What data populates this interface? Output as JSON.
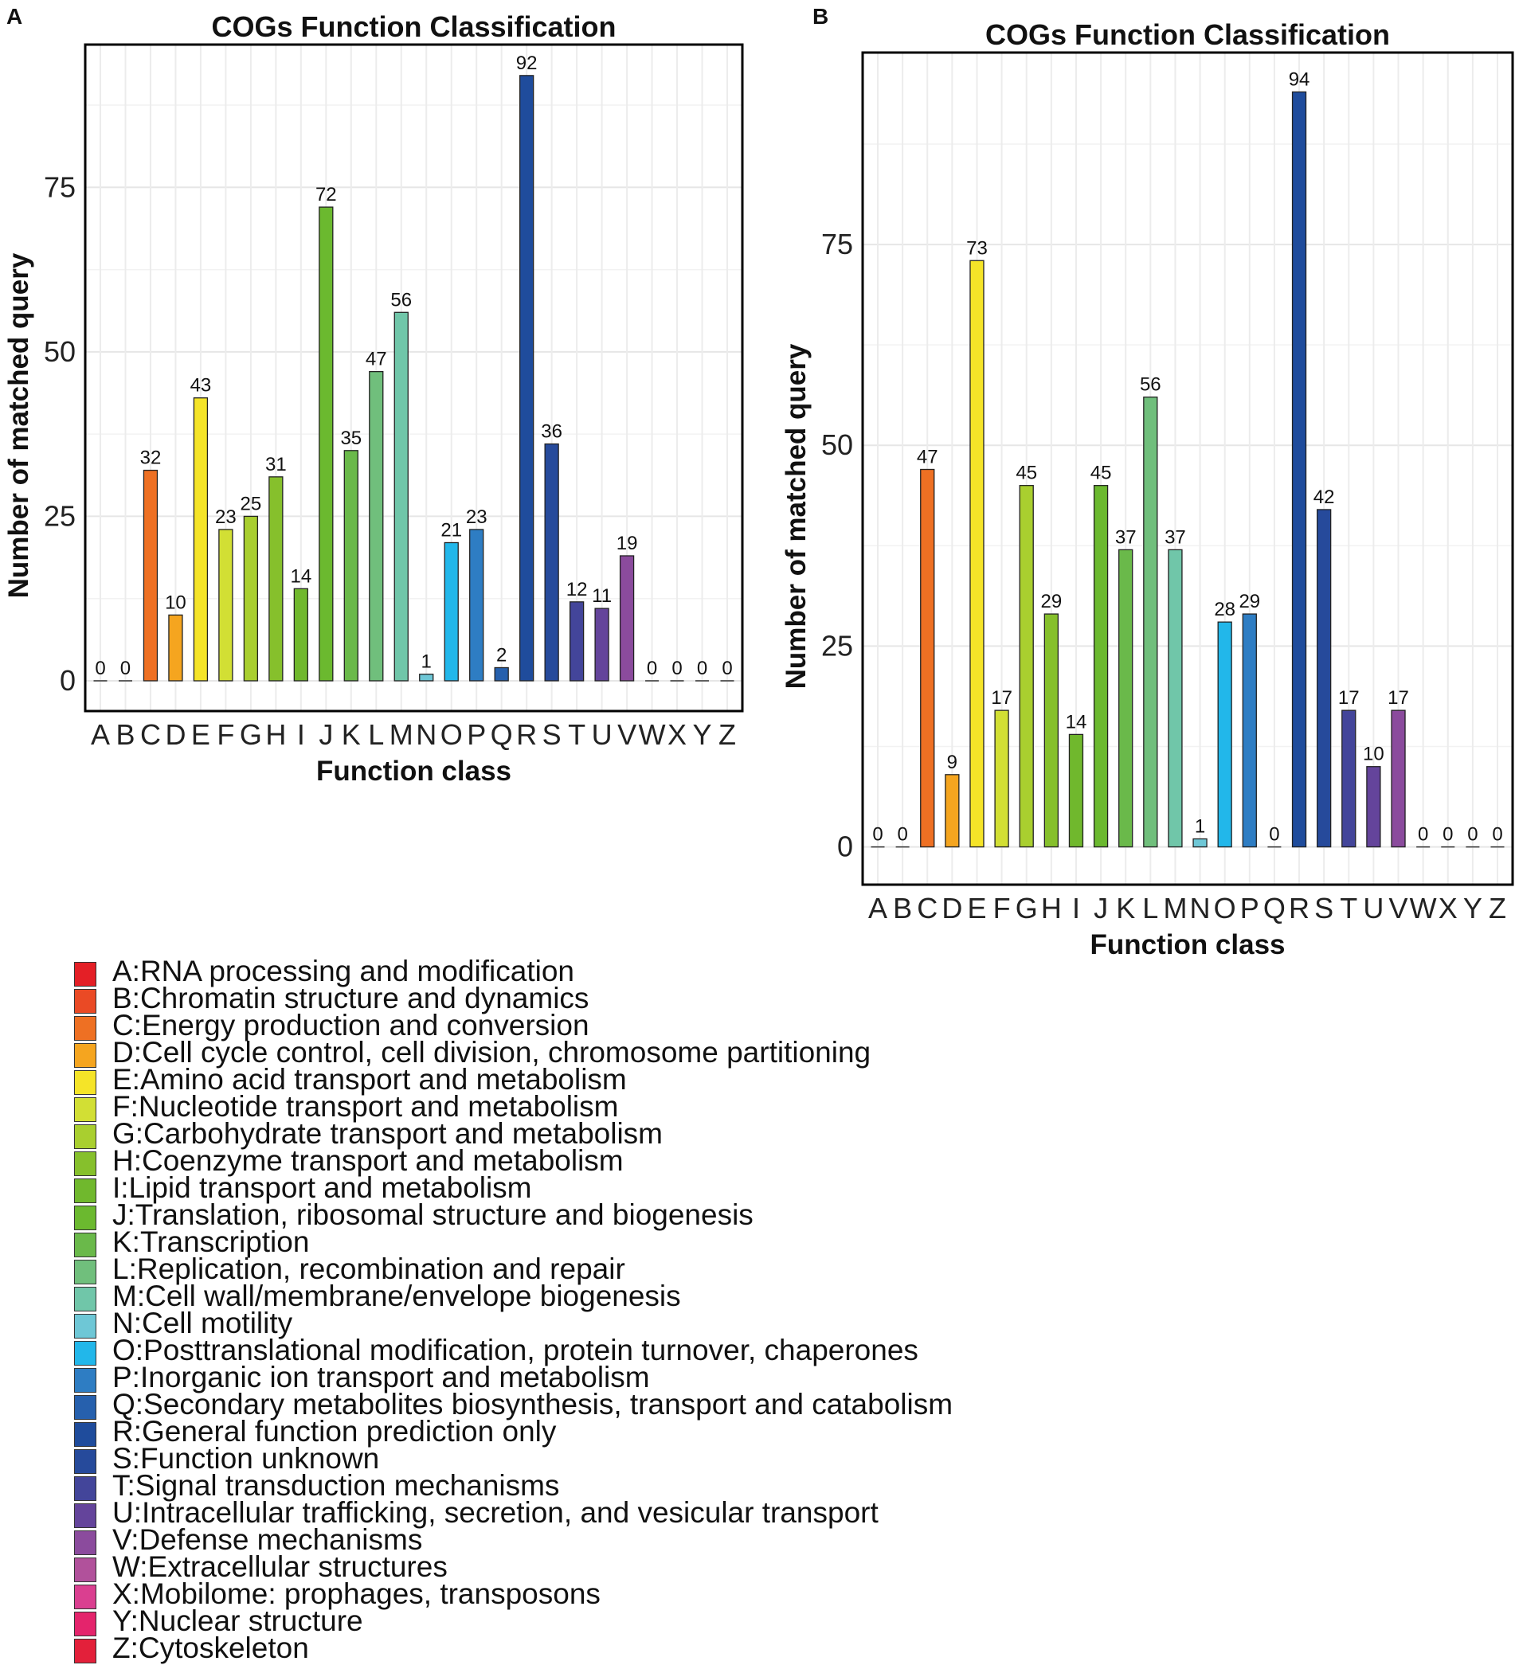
{
  "categories": [
    "A",
    "B",
    "C",
    "D",
    "E",
    "F",
    "G",
    "H",
    "I",
    "J",
    "K",
    "L",
    "M",
    "N",
    "O",
    "P",
    "Q",
    "R",
    "S",
    "T",
    "U",
    "V",
    "W",
    "X",
    "Y",
    "Z"
  ],
  "colors": [
    "#e41f26",
    "#ea4a25",
    "#ee7023",
    "#f5a51f",
    "#f5e428",
    "#d2df34",
    "#a9cf2f",
    "#86c02c",
    "#70b82d",
    "#6bb92f",
    "#6ab94a",
    "#70bf7c",
    "#70c6a9",
    "#6ec7d6",
    "#22b7ea",
    "#2e7dc3",
    "#2660ad",
    "#1f4c9c",
    "#264a9b",
    "#43459a",
    "#64449b",
    "#8b4b9d",
    "#b1519b",
    "#da3f90",
    "#e4246c",
    "#e3203a"
  ],
  "chart_data": [
    {
      "panel_label": "A",
      "type": "bar",
      "title": "COGs Function Classification",
      "xlabel": "Function class",
      "ylabel": "Number of matched query",
      "categories": [
        "A",
        "B",
        "C",
        "D",
        "E",
        "F",
        "G",
        "H",
        "I",
        "J",
        "K",
        "L",
        "M",
        "N",
        "O",
        "P",
        "Q",
        "R",
        "S",
        "T",
        "U",
        "V",
        "W",
        "X",
        "Y",
        "Z"
      ],
      "values": [
        0,
        0,
        32,
        10,
        43,
        23,
        25,
        31,
        14,
        72,
        35,
        47,
        56,
        1,
        21,
        23,
        2,
        92,
        36,
        12,
        11,
        19,
        0,
        0,
        0,
        0
      ],
      "yticks": [
        0,
        25,
        50,
        75
      ],
      "ylim": [
        -4.6,
        96.7
      ],
      "grid": true
    },
    {
      "panel_label": "B",
      "type": "bar",
      "title": "COGs Function Classification",
      "xlabel": "Function class",
      "ylabel": "Number of matched query",
      "categories": [
        "A",
        "B",
        "C",
        "D",
        "E",
        "F",
        "G",
        "H",
        "I",
        "J",
        "K",
        "L",
        "M",
        "N",
        "O",
        "P",
        "Q",
        "R",
        "S",
        "T",
        "U",
        "V",
        "W",
        "X",
        "Y",
        "Z"
      ],
      "values": [
        0,
        0,
        47,
        9,
        73,
        17,
        45,
        29,
        14,
        45,
        37,
        56,
        37,
        1,
        28,
        29,
        0,
        94,
        42,
        17,
        10,
        17,
        0,
        0,
        0,
        0
      ],
      "yticks": [
        0,
        25,
        50,
        75
      ],
      "ylim": [
        -4.7,
        98.9
      ],
      "grid": true
    }
  ],
  "legend": [
    "A:RNA processing and modification",
    "B:Chromatin structure and dynamics",
    "C:Energy production and conversion",
    "D:Cell cycle control, cell division, chromosome partitioning",
    "E:Amino acid transport and metabolism",
    "F:Nucleotide transport and metabolism",
    "G:Carbohydrate transport and metabolism",
    "H:Coenzyme transport and metabolism",
    "I:Lipid transport and metabolism",
    "J:Translation, ribosomal structure and biogenesis",
    "K:Transcription",
    "L:Replication, recombination and repair",
    "M:Cell wall/membrane/envelope biogenesis",
    "N:Cell motility",
    "O:Posttranslational modification, protein turnover, chaperones",
    "P:Inorganic ion transport and metabolism",
    "Q:Secondary metabolites biosynthesis, transport and catabolism",
    "R:General function prediction only",
    "S:Function unknown",
    "T:Signal transduction mechanisms",
    "U:Intracellular trafficking, secretion, and vesicular transport",
    "V:Defense mechanisms",
    "W:Extracellular structures",
    "X:Mobilome: prophages, transposons",
    "Y:Nuclear structure",
    "Z:Cytoskeleton"
  ]
}
